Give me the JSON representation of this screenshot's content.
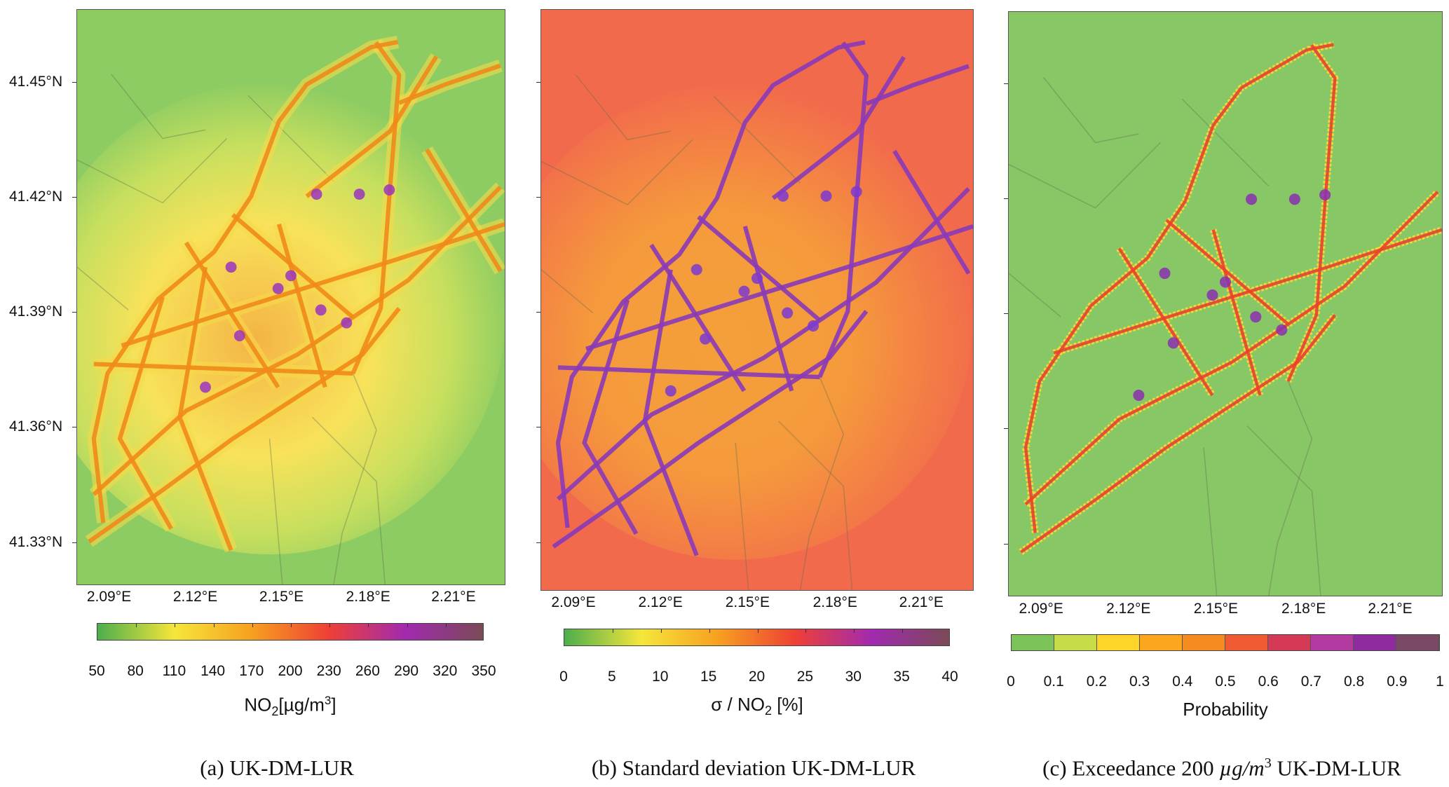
{
  "chart_data": [
    {
      "type": "heatmap",
      "caption": "(a) UK-DM-LUR",
      "y_tick_labels": [
        "41.45°N",
        "41.42°N",
        "41.39°N",
        "41.36°N",
        "41.33°N"
      ],
      "x_tick_labels": [
        "2.09°E",
        "2.12°E",
        "2.15°E",
        "2.18°E",
        "2.21°E"
      ],
      "colorbar": {
        "label_main": "NO",
        "label_sub": "2",
        "label_unit": "[µg/m",
        "label_sup": "3",
        "label_end": "]",
        "ticks": [
          "50",
          "80",
          "110",
          "140",
          "170",
          "200",
          "230",
          "260",
          "290",
          "320",
          "350"
        ],
        "range": [
          50,
          350
        ],
        "colors": [
          "#4cae4c",
          "#f5e63a",
          "#f7a020",
          "#ee4035",
          "#a12ab0",
          "#7a4a55"
        ],
        "continuous": true
      },
      "background_color": "#8ccc62",
      "road_color": "#f08a1a",
      "hotspot_color": "#9a35c0"
    },
    {
      "type": "heatmap",
      "caption": "(b) Standard deviation UK-DM-LUR",
      "y_tick_labels": [
        "",
        "",
        "",
        "",
        ""
      ],
      "x_tick_labels": [
        "2.09°E",
        "2.12°E",
        "2.15°E",
        "2.18°E",
        "2.21°E"
      ],
      "colorbar": {
        "label_main": "σ / NO",
        "label_sub": "2",
        "label_unit": " [%]",
        "label_sup": "",
        "label_end": "",
        "ticks": [
          "0",
          "5",
          "10",
          "15",
          "20",
          "25",
          "30",
          "35",
          "40"
        ],
        "range": [
          0,
          40
        ],
        "colors": [
          "#4cae4c",
          "#f5e63a",
          "#f7a020",
          "#ee4035",
          "#a12ab0",
          "#7a4a55"
        ],
        "continuous": true
      },
      "background_color": "#f26a4c",
      "road_color": "#8a3ab8",
      "hotspot_color": "#7b3ad0"
    },
    {
      "type": "heatmap",
      "caption_prefix": "(c) Exceedance 200 ",
      "caption_unit": "µg/m",
      "caption_sup": "3",
      "caption_suffix": " UK-DM-LUR",
      "y_tick_labels": [
        "",
        "",
        "",
        "",
        ""
      ],
      "x_tick_labels": [
        "2.09°E",
        "2.12°E",
        "2.15°E",
        "2.18°E",
        "2.21°E"
      ],
      "colorbar": {
        "label_main": "Probability",
        "label_sub": "",
        "label_unit": "",
        "label_sup": "",
        "label_end": "",
        "ticks": [
          "0",
          "0.1",
          "0.2",
          "0.3",
          "0.4",
          "0.5",
          "0.6",
          "0.7",
          "0.8",
          "0.9",
          "1"
        ],
        "range": [
          0,
          1
        ],
        "colors": [
          "#7cc35a",
          "#c8dc4a",
          "#fdd427",
          "#fca61e",
          "#f68b1f",
          "#ef5a32",
          "#d43a56",
          "#b23aa0",
          "#8f2a9f",
          "#7a4a64"
        ],
        "continuous": false
      },
      "background_color": "#88c766",
      "road_color": "#e8412e",
      "hotspot_color": "#8a2fb0"
    }
  ]
}
